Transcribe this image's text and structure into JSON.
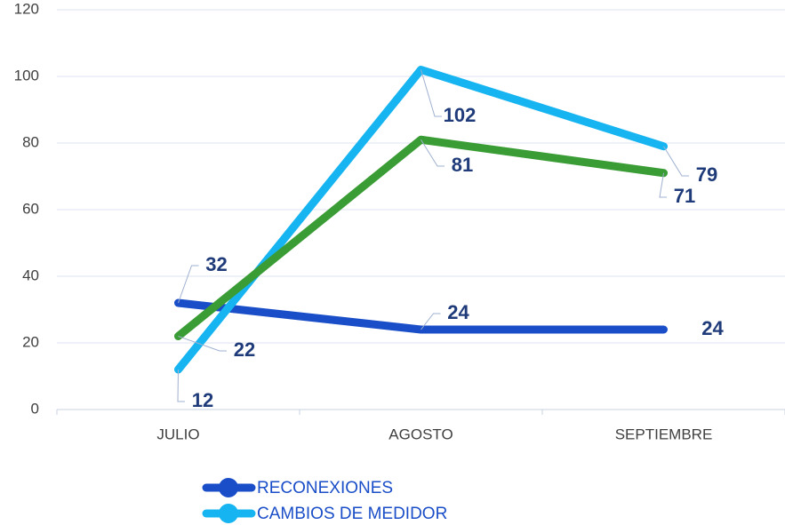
{
  "chart_data": {
    "type": "line",
    "categories": [
      "JULIO",
      "AGOSTO",
      "SEPTIEMBRE"
    ],
    "series": [
      {
        "name": "RECONEXIONES",
        "color": "#1a4ec8",
        "values": [
          32,
          24,
          24
        ]
      },
      {
        "name": "CAMBIOS DE MEDIDOR",
        "color": "#16b4f0",
        "values": [
          12,
          102,
          79
        ]
      },
      {
        "color": "#3a9c35",
        "values": [
          22,
          81,
          71
        ]
      }
    ],
    "ylim": [
      0,
      120
    ],
    "yticks": [
      0,
      20,
      40,
      60,
      80,
      100,
      120
    ],
    "grid": true
  }
}
